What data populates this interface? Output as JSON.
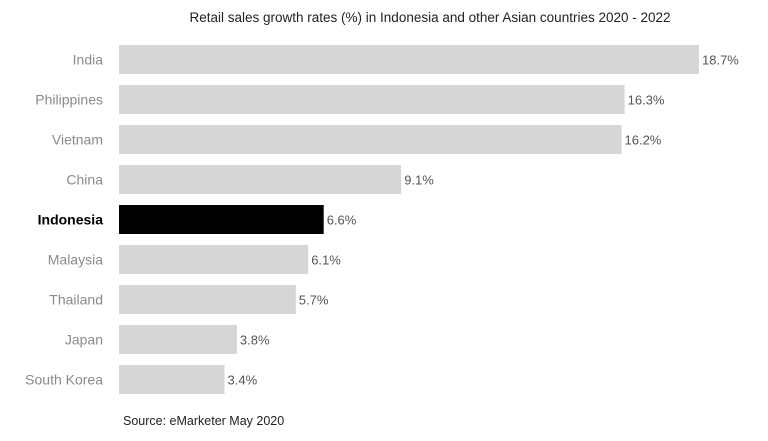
{
  "chart_data": {
    "type": "bar",
    "orientation": "horizontal",
    "title": "Retail sales growth rates (%) in Indonesia and other Asian countries 2020 - 2022",
    "categories": [
      "India",
      "Philippines",
      "Vietnam",
      "China",
      "Indonesia",
      "Malaysia",
      "Thailand",
      "Japan",
      "South Korea"
    ],
    "values": [
      18.7,
      16.3,
      16.2,
      9.1,
      6.6,
      6.1,
      5.7,
      3.8,
      3.4
    ],
    "value_labels": [
      "18.7%",
      "16.3%",
      "16.2%",
      "9.1%",
      "6.6%",
      "6.1%",
      "5.7%",
      "3.8%",
      "3.4%"
    ],
    "highlight": "Indonesia",
    "xlim": [
      0,
      18.7
    ],
    "grid": false,
    "legend": "none",
    "source": "Source: eMarketer May 2020",
    "colors": {
      "bar": "#d6d6d6",
      "highlight_bar": "#000000",
      "category_label": "#8a8a8a",
      "highlight_label": "#000000",
      "value_label": "#555555"
    }
  }
}
